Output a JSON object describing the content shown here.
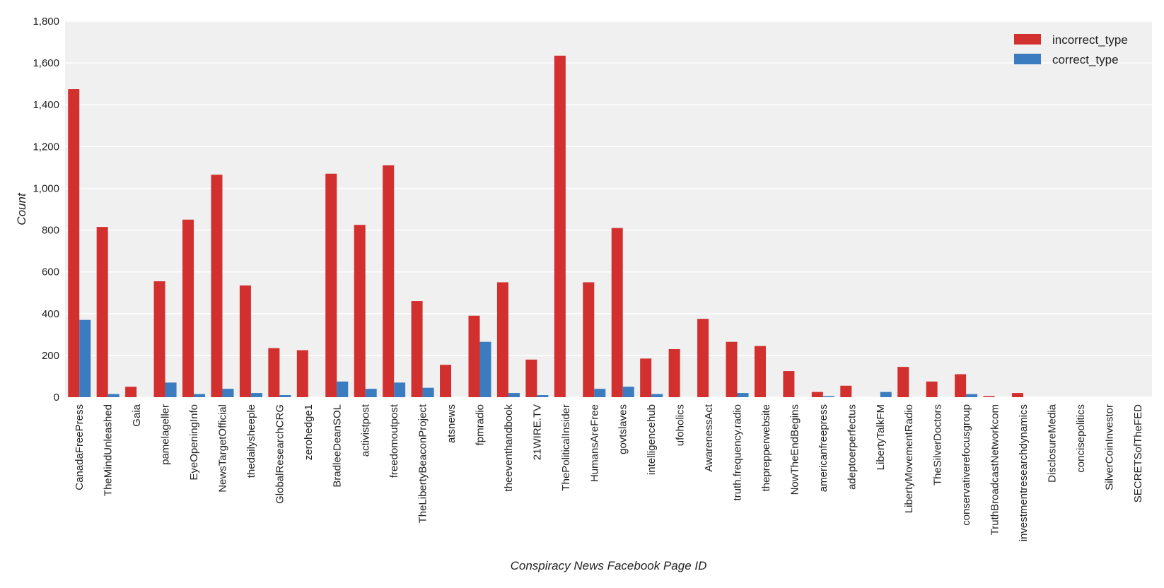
{
  "chart_data": {
    "type": "bar",
    "title": "",
    "xlabel": "Conspiracy News Facebook Page ID",
    "ylabel": "Count",
    "ylim": [
      0,
      1800
    ],
    "yticks": [
      0,
      200,
      400,
      600,
      800,
      1000,
      1200,
      1400,
      1600,
      1800
    ],
    "ytick_labels": [
      "0",
      "200",
      "400",
      "600",
      "800",
      "1,000",
      "1,200",
      "1,400",
      "1,600",
      "1,800"
    ],
    "grid": true,
    "legend_position": "top-right",
    "categories": [
      "CanadaFreePress",
      "TheMindUnleashed",
      "Gaia",
      "pamelageller",
      "EyeOpeningInfo",
      "NewsTargetOfficial",
      "thedailysheeple",
      "GlobalResearchCRG",
      "zerohedge1",
      "BradleeDeanSOL",
      "activistpost",
      "freedomoutpost",
      "TheLibertyBeaconProject",
      "atsnews",
      "fpmradio",
      "theeventhandbook",
      "21WIRE.TV",
      "ThePoliticalInsider",
      "HumansAreFree",
      "govtslaves",
      "intelligencehub",
      "ufoholics",
      "AwarenessAct",
      "truth.frequency.radio",
      "theprepperwebsite",
      "NowTheEndBegins",
      "americanfreepress",
      "adeptoerperfectus",
      "LibertyTalkFM",
      "LibertyMovementRadio",
      "TheSilverDoctors",
      "conservativerefocusgroup",
      "TruthBroadcastNetworkcom",
      "investmentresearchdynamics",
      "DisclosureMedia",
      "concisepolitics",
      "SilverCoinInvestor",
      "SECRETSofTheFED"
    ],
    "series": [
      {
        "name": "incorrect_type",
        "color": "#d2302e",
        "values": [
          1475,
          815,
          50,
          555,
          850,
          1065,
          535,
          235,
          225,
          1070,
          825,
          1110,
          460,
          155,
          390,
          550,
          180,
          1635,
          550,
          810,
          185,
          230,
          375,
          265,
          245,
          125,
          25,
          55,
          0,
          145,
          75,
          110,
          5,
          20,
          0,
          0,
          0,
          0
        ]
      },
      {
        "name": "correct_type",
        "color": "#3b7bbf",
        "values": [
          370,
          15,
          0,
          70,
          15,
          40,
          20,
          10,
          0,
          75,
          40,
          70,
          45,
          0,
          265,
          20,
          10,
          0,
          40,
          50,
          15,
          0,
          0,
          20,
          0,
          0,
          5,
          0,
          25,
          0,
          0,
          15,
          0,
          0,
          0,
          0,
          0,
          0
        ]
      }
    ]
  }
}
